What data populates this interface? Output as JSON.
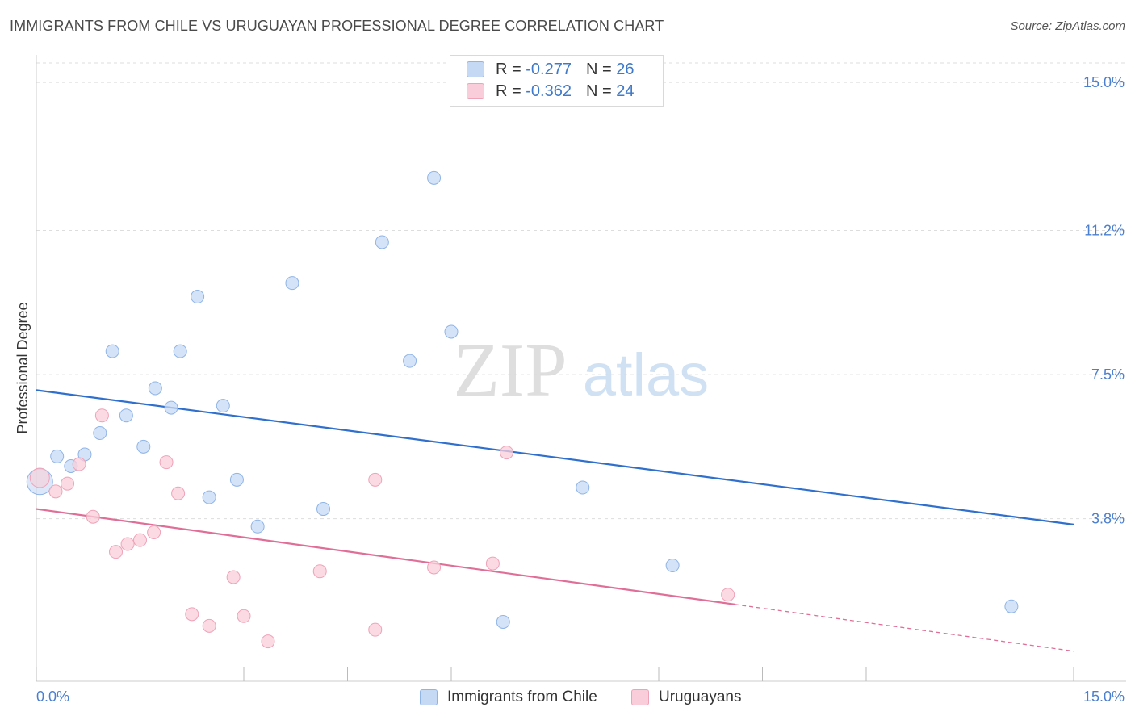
{
  "title": "IMMIGRANTS FROM CHILE VS URUGUAYAN PROFESSIONAL DEGREE CORRELATION CHART",
  "source": "Source: ZipAtlas.com",
  "watermark": {
    "zip": "ZIP",
    "atlas": "atlas"
  },
  "legend": {
    "r_label": "R =",
    "n_label": "N =",
    "rows": [
      {
        "r": "-0.277",
        "n": "26"
      },
      {
        "r": "-0.362",
        "n": "24"
      }
    ]
  },
  "colors": {
    "blue_fill": "#c5d9f5",
    "blue_stroke": "#8fb4e6",
    "blue_line": "#3070cc",
    "pink_fill": "#f9cdd9",
    "pink_stroke": "#efa3b8",
    "pink_line": "#e06f98",
    "tick_label": "#4b7fd0",
    "grid": "#dddddd"
  },
  "chart_data": {
    "type": "scatter",
    "title": "IMMIGRANTS FROM CHILE VS URUGUAYAN PROFESSIONAL DEGREE CORRELATION CHART",
    "xlabel": "",
    "ylabel": "Professional Degree",
    "xlim": [
      0,
      15
    ],
    "ylim": [
      0,
      15.5
    ],
    "x_tick_labels": [
      "0.0%",
      "15.0%"
    ],
    "y_ticks": [
      3.8,
      7.5,
      11.2,
      15.0
    ],
    "y_tick_labels": [
      "3.8%",
      "7.5%",
      "11.2%",
      "15.0%"
    ],
    "grid": true,
    "legend_position": "top-center",
    "series": [
      {
        "name": "Immigrants from Chile",
        "color": "#c5d9f5",
        "points": [
          [
            0.05,
            4.75
          ],
          [
            0.3,
            5.4
          ],
          [
            0.5,
            5.15
          ],
          [
            0.7,
            5.45
          ],
          [
            0.92,
            6.0
          ],
          [
            1.1,
            8.1
          ],
          [
            1.3,
            6.45
          ],
          [
            1.55,
            5.65
          ],
          [
            1.72,
            7.15
          ],
          [
            1.95,
            6.65
          ],
          [
            2.08,
            8.1
          ],
          [
            2.33,
            9.5
          ],
          [
            2.5,
            4.35
          ],
          [
            2.7,
            6.7
          ],
          [
            2.9,
            4.8
          ],
          [
            3.2,
            3.6
          ],
          [
            3.7,
            9.85
          ],
          [
            4.15,
            4.05
          ],
          [
            5.0,
            10.9
          ],
          [
            5.4,
            7.85
          ],
          [
            5.75,
            12.55
          ],
          [
            6.0,
            8.6
          ],
          [
            6.75,
            1.15
          ],
          [
            7.9,
            4.6
          ],
          [
            9.2,
            2.6
          ],
          [
            14.1,
            1.55
          ]
        ],
        "trend": {
          "x": [
            0,
            15
          ],
          "y": [
            7.1,
            3.65
          ]
        }
      },
      {
        "name": "Uruguayans",
        "color": "#f9cdd9",
        "points": [
          [
            0.05,
            4.85
          ],
          [
            0.28,
            4.5
          ],
          [
            0.45,
            4.7
          ],
          [
            0.62,
            5.2
          ],
          [
            0.82,
            3.85
          ],
          [
            0.95,
            6.45
          ],
          [
            1.15,
            2.95
          ],
          [
            1.32,
            3.15
          ],
          [
            1.5,
            3.25
          ],
          [
            1.7,
            3.45
          ],
          [
            1.88,
            5.25
          ],
          [
            2.05,
            4.45
          ],
          [
            2.25,
            1.35
          ],
          [
            2.5,
            1.05
          ],
          [
            2.85,
            2.3
          ],
          [
            3.0,
            1.3
          ],
          [
            3.35,
            0.65
          ],
          [
            4.1,
            2.45
          ],
          [
            4.9,
            4.8
          ],
          [
            4.9,
            0.95
          ],
          [
            5.75,
            2.55
          ],
          [
            6.8,
            5.5
          ],
          [
            6.6,
            2.65
          ],
          [
            10.0,
            1.85
          ]
        ],
        "trend": {
          "x": [
            0,
            10.1
          ],
          "y": [
            4.05,
            1.6
          ]
        },
        "trend_extension": {
          "x": [
            10.1,
            15
          ],
          "y": [
            1.6,
            0.4
          ]
        }
      }
    ]
  }
}
